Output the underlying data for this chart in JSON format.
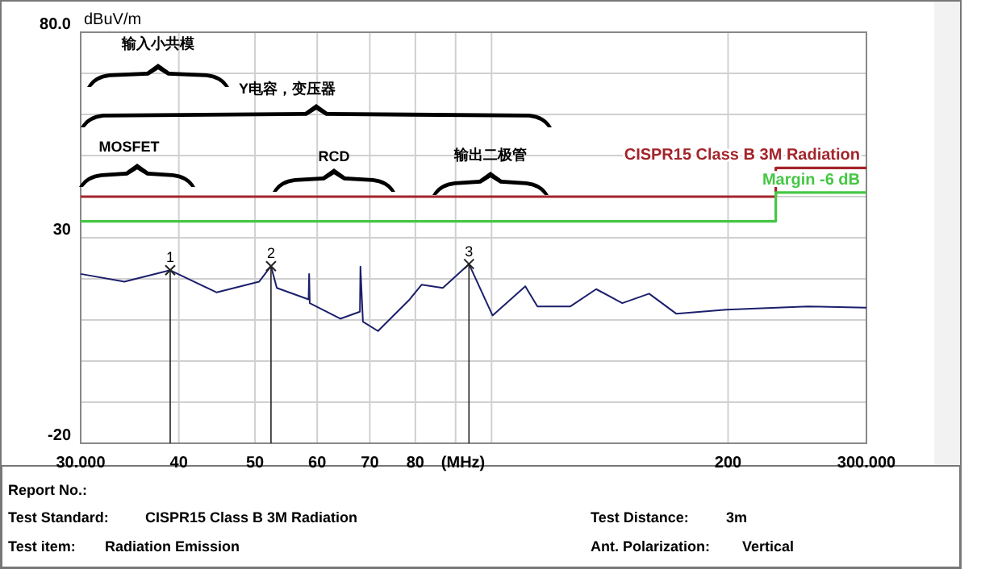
{
  "chart_data": {
    "type": "line",
    "ylabel": "dBuV/m",
    "xlabel": "(MHz)",
    "log": "x",
    "grid": true,
    "legend": false,
    "marker": "none",
    "line_style": "solid",
    "xlim": [
      30,
      300
    ],
    "ylim": [
      -20,
      80
    ],
    "xticks": [
      {
        "value": 30,
        "label": "30.000"
      },
      40,
      50,
      60,
      70,
      80,
      {
        "value": 90,
        "label": null
      },
      {
        "value": 100,
        "label": null
      },
      200,
      {
        "value": 300,
        "label": "300.000"
      }
    ],
    "yticks": [
      {
        "value": -20,
        "label": "-20"
      },
      {
        "value": -10,
        "label": null
      },
      {
        "value": 0,
        "label": null
      },
      {
        "value": 10,
        "label": null
      },
      {
        "value": 20,
        "label": null
      },
      30,
      {
        "value": 40,
        "label": null
      },
      {
        "value": 50,
        "label": null
      },
      {
        "value": 60,
        "label": null
      },
      {
        "value": 70,
        "label": null
      },
      {
        "value": 80,
        "label": "80.0"
      }
    ],
    "series": [
      {
        "color": "#1c1f6b",
        "x": [
          30,
          34.1,
          39,
          44.7,
          50.6,
          52.4,
          53.3,
          58.5,
          58.6,
          58.7,
          64.2,
          68,
          68.1,
          68.6,
          71.7,
          78.5,
          81.5,
          86.7,
          93.6,
          100.3,
          110.4,
          114.4,
          126,
          135.9,
          146.7,
          158.7,
          171.9,
          198.8,
          252.5,
          300
        ],
        "values": [
          21.2,
          19.3,
          22.1,
          16.7,
          19.3,
          23.1,
          17.8,
          15,
          21.2,
          14.1,
          10.3,
          12,
          23,
          9.6,
          7.3,
          14.8,
          18.6,
          17.8,
          23.6,
          11.1,
          18.2,
          13.3,
          13.3,
          17.5,
          14.1,
          16.4,
          11.5,
          12.5,
          13.3,
          13
        ]
      },
      {
        "type": "step",
        "name": "CISPR15 Class B 3M Radiation",
        "color": "#a3242a",
        "x": [
          30,
          230,
          300
        ],
        "values": [
          40,
          47,
          47
        ]
      },
      {
        "type": "step",
        "name": "Margin -6 dB",
        "color": "#45c745",
        "x": [
          30,
          230,
          300
        ],
        "values": [
          34,
          41,
          41
        ]
      }
    ],
    "annotations": [
      "输入小共模",
      "Y电容，变压器",
      "MOSFET",
      "RCD",
      "输出二极管",
      {
        "text": "1",
        "x": 39,
        "y": 22.1
      },
      {
        "text": "2",
        "x": 52.4,
        "y": 23.1
      },
      {
        "text": "3",
        "x": 93.6,
        "y": 23.6
      },
      "Report No.:",
      "Test Standard:",
      "CISPR15 Class B 3M Radiation",
      "Test Distance:",
      "3m",
      "Test item:",
      "Radiation Emission",
      "Ant. Polarization:",
      "Vertical"
    ]
  }
}
